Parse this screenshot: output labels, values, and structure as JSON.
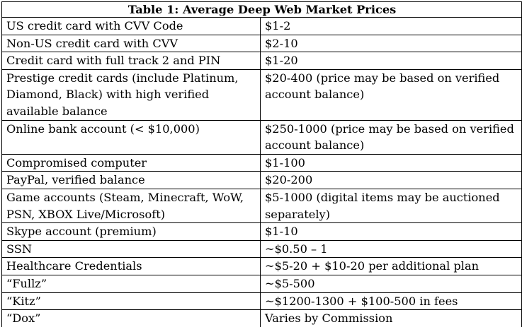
{
  "table": {
    "title": "Table 1: Average Deep Web Market Prices",
    "rows": [
      {
        "item": "US credit card with CVV Code",
        "price": "$1-2"
      },
      {
        "item": "Non-US credit card with CVV",
        "price": "$2-10"
      },
      {
        "item": "Credit card with full track 2 and PIN",
        "price": "$1-20"
      },
      {
        "item": "Prestige credit cards (include Platinum, Diamond, Black) with high verified available balance",
        "price": "$20-400 (price may be based on verified account balance)"
      },
      {
        "item": "Online bank account (< $10,000)",
        "price": "$250-1000 (price may be based on verified account balance)"
      },
      {
        "item": "Compromised computer",
        "price": "$1-100"
      },
      {
        "item": "PayPal, verified balance",
        "price": "$20-200"
      },
      {
        "item": "Game accounts (Steam, Minecraft, WoW, PSN, XBOX Live/Microsoft)",
        "price": "$5-1000 (digital items may be auctioned separately)"
      },
      {
        "item": "Skype account (premium)",
        "price": "$1-10"
      },
      {
        "item": "SSN",
        "price": "~$0.50 – 1"
      },
      {
        "item": "Healthcare Credentials",
        "price": "~$5-20 + $10-20 per additional plan"
      },
      {
        "item": "“Fullz”",
        "price": "~$5-500"
      },
      {
        "item": "“Kitz”",
        "price": "~$1200-1300 + $100-500 in fees"
      },
      {
        "item": "“Dox”",
        "price": "Varies by Commission"
      }
    ]
  }
}
